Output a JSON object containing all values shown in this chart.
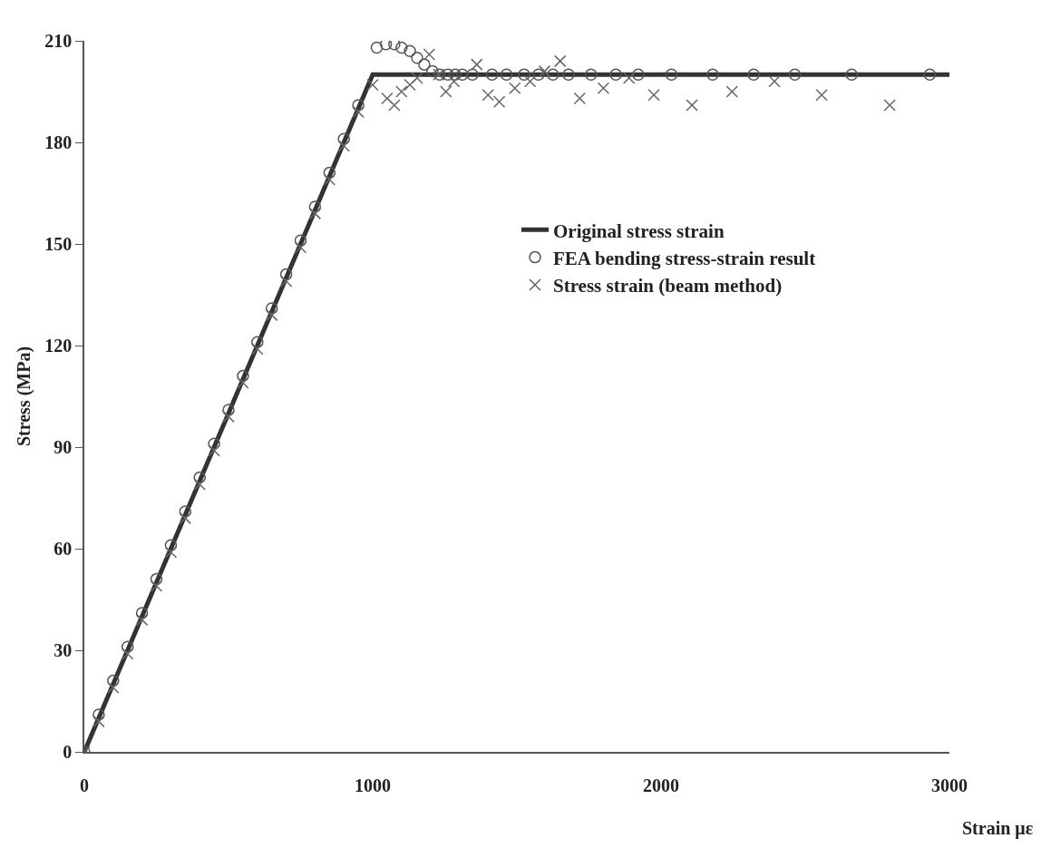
{
  "chart_data": {
    "type": "scatter",
    "xlabel": "Strain με",
    "ylabel": "Stress (MPa)",
    "xlim": [
      0,
      3000
    ],
    "xticks": [
      0,
      1000,
      2000,
      3000
    ],
    "ylim": [
      0,
      210
    ],
    "yticks": [
      0,
      30,
      60,
      90,
      120,
      150,
      180,
      210
    ],
    "grid": false,
    "legend": "right",
    "series": [
      {
        "name": "Original stress strain",
        "type": "line",
        "color": "#333333",
        "marker": "none",
        "line_style": "solid",
        "x": [
          0,
          1000,
          3000
        ],
        "values": [
          0,
          200,
          200
        ]
      },
      {
        "name": "FEA bending stress-strain result",
        "color": "#555555",
        "marker": "circle",
        "x": [
          0,
          50,
          100,
          150,
          200,
          250,
          300,
          350,
          400,
          450,
          500,
          550,
          600,
          650,
          700,
          750,
          800,
          850,
          900,
          950,
          1014,
          1046,
          1075,
          1100,
          1129,
          1154,
          1179,
          1207,
          1232,
          1261,
          1286,
          1311,
          1346,
          1414,
          1464,
          1525,
          1575,
          1625,
          1679,
          1757,
          1843,
          1921,
          2036,
          2179,
          2321,
          2464,
          2661,
          2932
        ],
        "values": [
          0,
          11,
          21,
          31,
          41,
          51,
          61,
          71,
          81,
          91,
          101,
          111,
          121,
          131,
          141,
          151,
          161,
          171,
          181,
          191,
          208,
          209,
          209,
          208,
          207,
          205,
          203,
          201,
          200,
          200,
          200,
          200,
          200,
          200,
          200,
          200,
          200,
          200,
          200,
          200,
          200,
          200,
          200,
          200,
          200,
          200,
          200,
          200
        ]
      },
      {
        "name": "Stress strain (beam method)",
        "color": "#666666",
        "marker": "cross",
        "x": [
          0,
          50,
          100,
          150,
          200,
          250,
          300,
          350,
          400,
          450,
          500,
          550,
          600,
          650,
          700,
          750,
          800,
          850,
          900,
          950,
          1000,
          1050,
          1075,
          1100,
          1129,
          1154,
          1196,
          1229,
          1254,
          1282,
          1361,
          1400,
          1439,
          1493,
          1546,
          1596,
          1650,
          1718,
          1800,
          1889,
          1975,
          2107,
          2246,
          2393,
          2557,
          2793
        ],
        "values": [
          0,
          9,
          19,
          29,
          39,
          49,
          59,
          69,
          79,
          89,
          99,
          109,
          119,
          129,
          139,
          149,
          159,
          169,
          179,
          189,
          197,
          193,
          191,
          195,
          197,
          199,
          206,
          200,
          195,
          198,
          203,
          194,
          192,
          196,
          198,
          201,
          204,
          193,
          196,
          199,
          194,
          191,
          195,
          198,
          194,
          191
        ]
      }
    ]
  }
}
